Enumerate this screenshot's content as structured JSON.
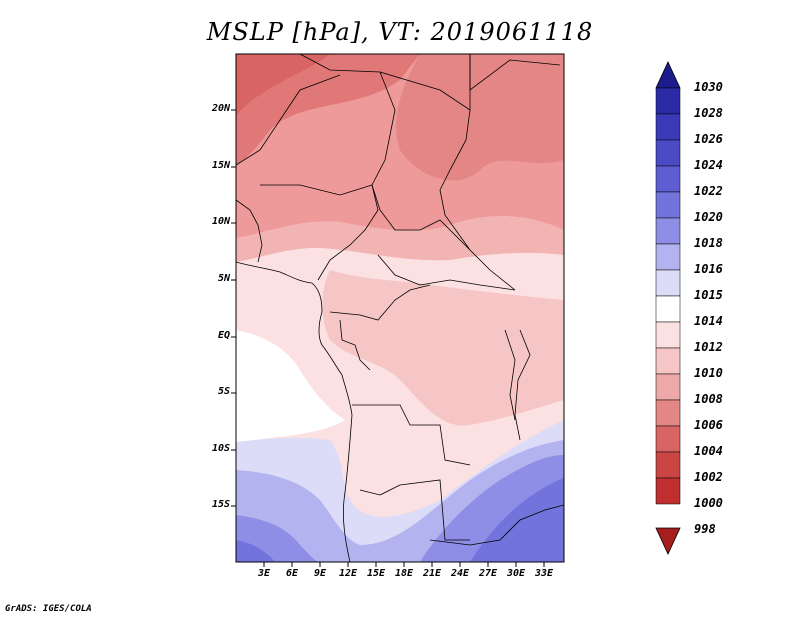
{
  "title": "MSLP [hPa], VT: 2019061118",
  "credit": "GrADS: IGES/COLA",
  "map": {
    "lat_ticks": [
      "20N",
      "15N",
      "10N",
      "5N",
      "EQ",
      "5S",
      "10S",
      "15S"
    ],
    "lon_ticks": [
      "3E",
      "6E",
      "9E",
      "12E",
      "15E",
      "18E",
      "21E",
      "24E",
      "27E",
      "30E",
      "33E"
    ],
    "lon_range": [
      0,
      35
    ],
    "lat_range": [
      -19,
      25
    ]
  },
  "colorbar": {
    "levels": [
      "1030",
      "1028",
      "1026",
      "1024",
      "1022",
      "1020",
      "1018",
      "1016",
      "1015",
      "1014",
      "1012",
      "1010",
      "1008",
      "1006",
      "1004",
      "1002",
      "1000",
      "998"
    ],
    "colors": [
      "#1c1c8c",
      "#2a2aa6",
      "#3a3ab8",
      "#4b4bc6",
      "#5e5ed2",
      "#7373dc",
      "#8e8ee6",
      "#b3b3ef",
      "#dcdcf8",
      "#ffffff",
      "#fbe1e1",
      "#f6c5c5",
      "#eea8a8",
      "#e48686",
      "#d86464",
      "#cc4545",
      "#bf2f2f",
      "#a81e1e"
    ]
  },
  "colors": {
    "ocean_high": "#ffffff",
    "field_1004": "#e07070",
    "field_1006": "#e88888",
    "field_1008": "#eea8a8",
    "field_1010": "#f6c5c5",
    "field_1012": "#fbe1e1",
    "field_1014": "#ffffff",
    "field_1016": "#dcdcf8",
    "field_1018": "#b3b3ef",
    "field_1020": "#8e8ee6",
    "field_1022": "#7373dc"
  }
}
